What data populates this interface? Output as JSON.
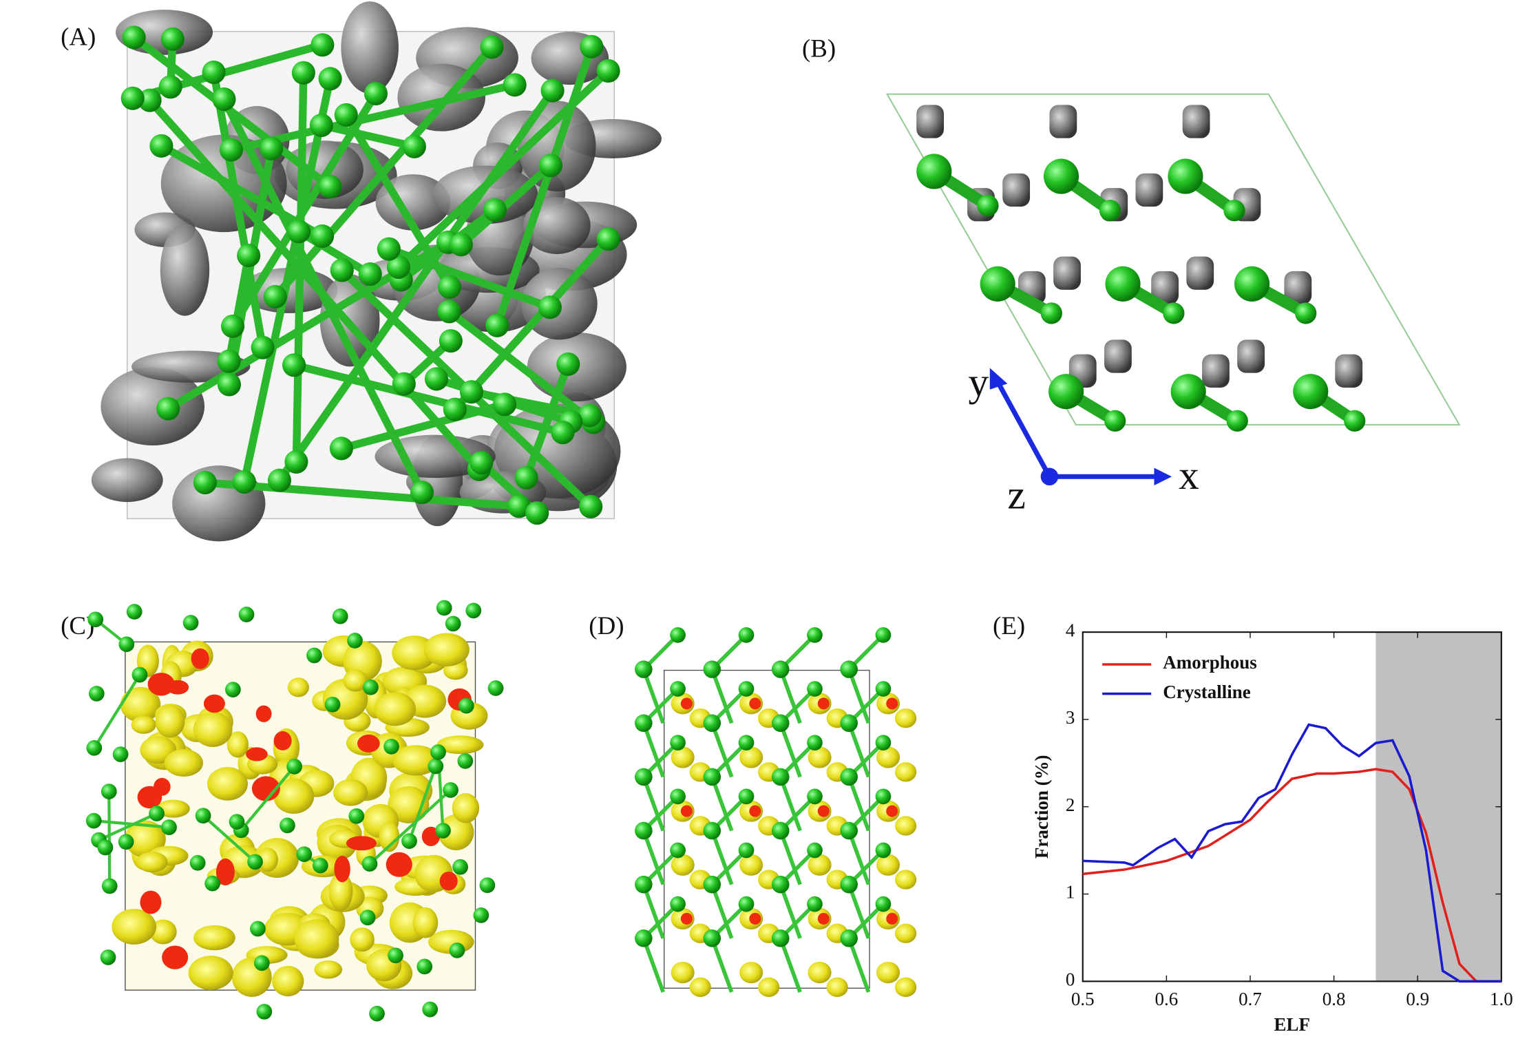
{
  "panel_labels": [
    "(A)",
    "(B)",
    "(C)",
    "(D)",
    "(E)"
  ],
  "axis_letters": [
    "y",
    "x",
    "z"
  ],
  "chart_data": {
    "type": "line",
    "xlabel": "ELF",
    "ylabel": "Fraction (%)",
    "xlim": [
      0.5,
      1.0
    ],
    "ylim": [
      0,
      4
    ],
    "xticks": [
      0.5,
      0.6,
      0.7,
      0.8,
      0.9,
      {
        "value": 1.0,
        "label": "1.0"
      }
    ],
    "yticks": [
      0,
      1,
      2,
      3,
      4
    ],
    "shaded_xrange": [
      0.85,
      1.0
    ],
    "shade_color": "#c0c0c0",
    "legend": "upper left",
    "series": [
      {
        "name": "Amorphous",
        "color": "#e0201c",
        "x": [
          0.5,
          0.55,
          0.6,
          0.65,
          0.7,
          0.72,
          0.75,
          0.78,
          0.8,
          0.83,
          0.85,
          0.87,
          0.89,
          0.91,
          0.93,
          0.95,
          0.97,
          1.0
        ],
        "values": [
          1.23,
          1.28,
          1.38,
          1.55,
          1.85,
          2.05,
          2.32,
          2.38,
          2.38,
          2.4,
          2.43,
          2.4,
          2.2,
          1.7,
          0.9,
          0.2,
          0.0,
          0.0
        ]
      },
      {
        "name": "Crystalline",
        "color": "#1a1ad0",
        "x": [
          0.5,
          0.55,
          0.56,
          0.59,
          0.61,
          0.63,
          0.65,
          0.67,
          0.69,
          0.71,
          0.73,
          0.75,
          0.77,
          0.79,
          0.81,
          0.83,
          0.85,
          0.87,
          0.89,
          0.91,
          0.93,
          0.95,
          1.0
        ],
        "values": [
          1.38,
          1.36,
          1.33,
          1.53,
          1.63,
          1.42,
          1.72,
          1.8,
          1.83,
          2.1,
          2.2,
          2.6,
          2.94,
          2.9,
          2.7,
          2.58,
          2.73,
          2.76,
          2.35,
          1.5,
          0.12,
          0.0,
          0.0
        ]
      }
    ]
  }
}
